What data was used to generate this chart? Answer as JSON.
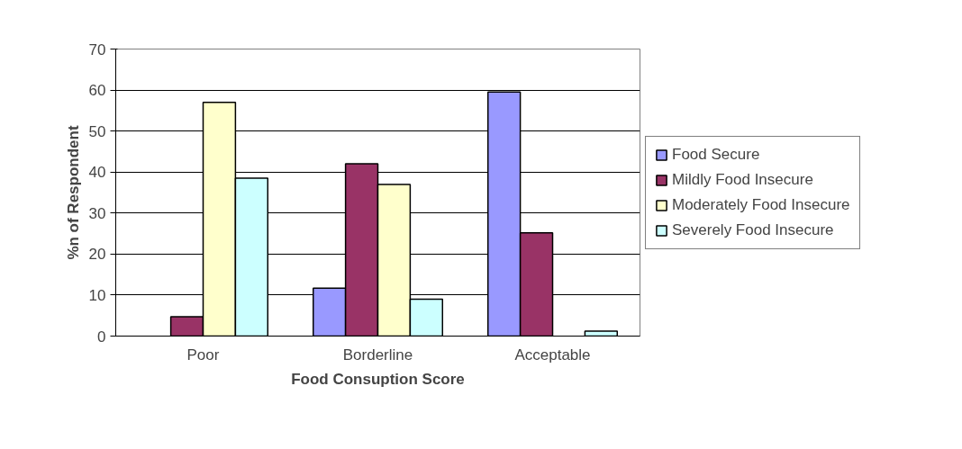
{
  "chart_data": {
    "type": "bar",
    "xlabel": "Food Consuption Score",
    "ylabel": "%n of Respondent",
    "categories": [
      "Poor",
      "Borderline",
      "Acceptable"
    ],
    "series": [
      {
        "name": "Food Secure",
        "color": "#9999ff",
        "values": [
          null,
          11.7,
          59.5
        ]
      },
      {
        "name": "Mildly Food Insecure",
        "color": "#993366",
        "values": [
          4.7,
          42,
          25.2
        ]
      },
      {
        "name": "Moderately Food Insecure",
        "color": "#ffffcc",
        "values": [
          57,
          37,
          null
        ]
      },
      {
        "name": "Severely Food Insecure",
        "color": "#ccffff",
        "values": [
          38.5,
          9,
          1.2
        ]
      }
    ],
    "ylim": [
      0,
      70
    ],
    "yticks": [
      0,
      10,
      20,
      30,
      40,
      50,
      60,
      70
    ],
    "grid": "y",
    "legend": "right"
  }
}
